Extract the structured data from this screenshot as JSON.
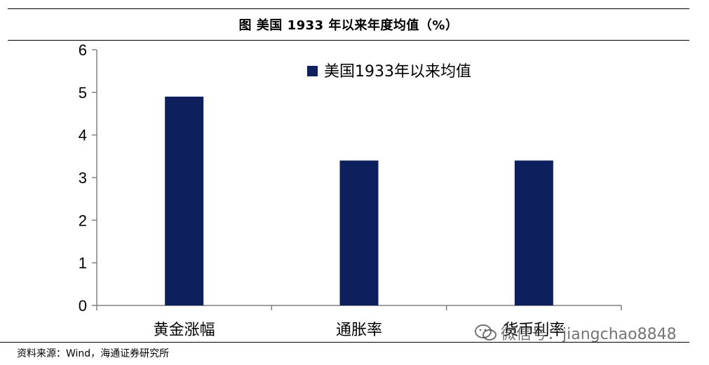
{
  "title": "图  美国 1933 年以来年度均值（%）",
  "chart_data": {
    "type": "bar",
    "categories": [
      "黄金涨幅",
      "通胀率",
      "货币利率"
    ],
    "series": [
      {
        "name": "美国1933年以来均值",
        "values": [
          4.9,
          3.4,
          3.4
        ]
      }
    ],
    "ylim": [
      0,
      6
    ],
    "yticks": [
      "0",
      "1",
      "2",
      "3",
      "4",
      "5",
      "6"
    ],
    "legend_position": "top-right",
    "grid": false,
    "bar_color": "#0d1f5c"
  },
  "watermark": {
    "icon": "wechat-icon",
    "text": "微信号：jiangchao8848"
  },
  "source": "资料来源：Wind，海通证券研究所"
}
